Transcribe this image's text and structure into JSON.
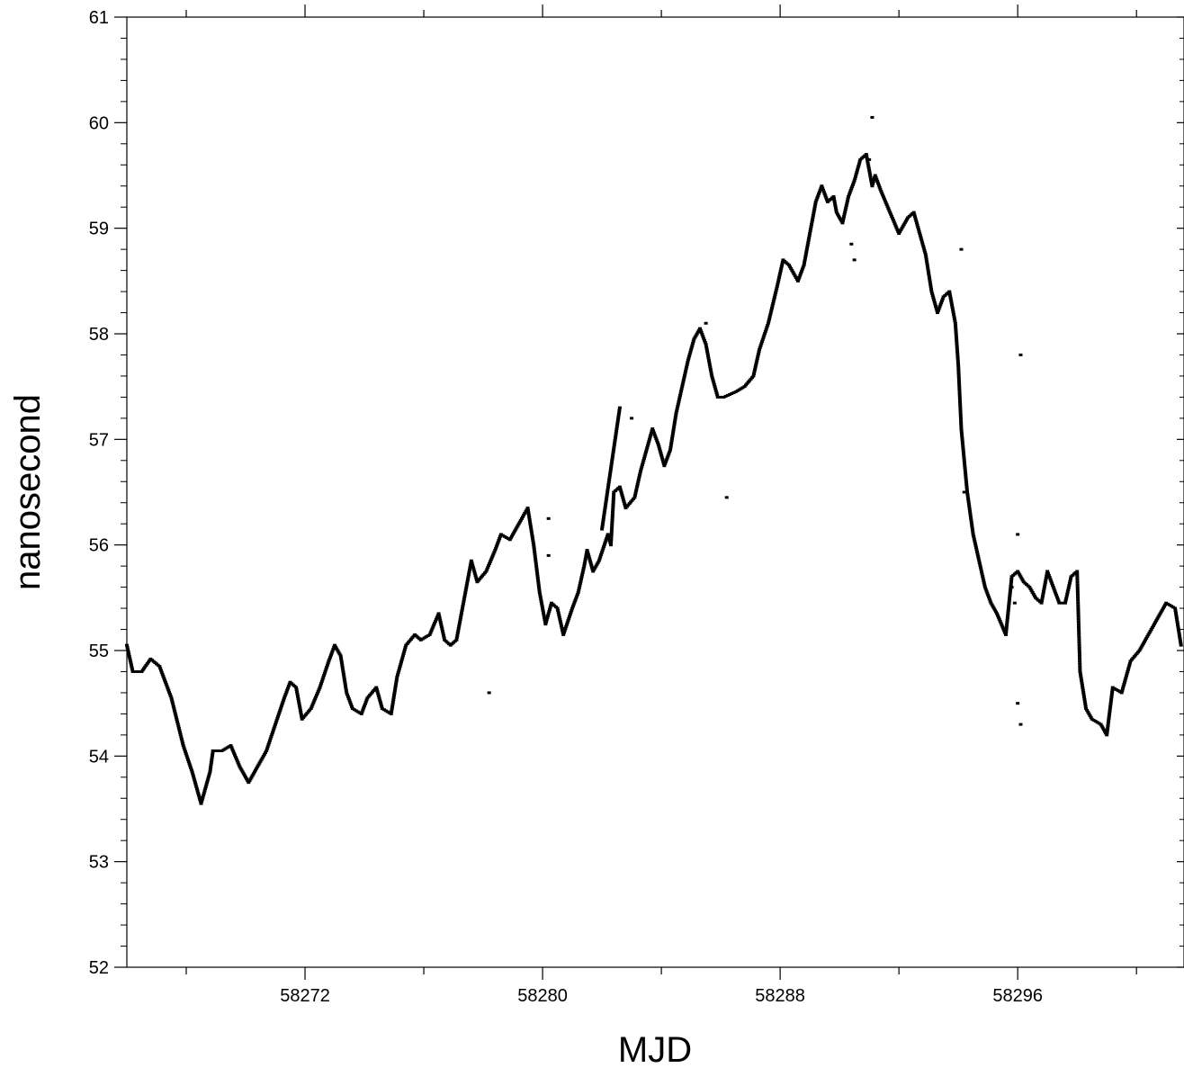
{
  "chart_data": {
    "type": "scatter",
    "title": "",
    "xlabel": "MJD",
    "ylabel": "nanosecond",
    "xlim": [
      58266.0,
      58301.6
    ],
    "ylim": [
      52,
      61
    ],
    "x_ticks": [
      58272,
      58280,
      58288,
      58296
    ],
    "y_ticks": [
      52,
      53,
      54,
      55,
      56,
      57,
      58,
      59,
      60,
      61
    ],
    "grid": false,
    "legend": "none",
    "marker_color": "#000000",
    "series": [
      {
        "points": [
          [
            58266.0,
            55.05
          ],
          [
            58266.2,
            54.8
          ],
          [
            58266.5,
            54.8
          ],
          [
            58266.8,
            54.92
          ],
          [
            58267.1,
            54.85
          ],
          [
            58267.5,
            54.55
          ],
          [
            58267.9,
            54.1
          ],
          [
            58268.2,
            53.85
          ],
          [
            58268.5,
            53.55
          ],
          [
            58268.8,
            53.85
          ],
          [
            58268.9,
            54.05
          ],
          [
            58269.2,
            54.05
          ],
          [
            58269.5,
            54.1
          ],
          [
            58269.8,
            53.9
          ],
          [
            58270.1,
            53.75
          ],
          [
            58270.4,
            53.9
          ],
          [
            58270.7,
            54.05
          ],
          [
            58271.0,
            54.3
          ],
          [
            58271.3,
            54.55
          ],
          [
            58271.5,
            54.7
          ],
          [
            58271.7,
            54.65
          ],
          [
            58271.9,
            54.35
          ],
          [
            58272.2,
            54.45
          ],
          [
            58272.5,
            54.65
          ],
          [
            58272.8,
            54.9
          ],
          [
            58273.0,
            55.05
          ],
          [
            58273.2,
            54.95
          ],
          [
            58273.4,
            54.6
          ],
          [
            58273.6,
            54.45
          ],
          [
            58273.9,
            54.4
          ],
          [
            58274.1,
            54.55
          ],
          [
            58274.4,
            54.65
          ],
          [
            58274.6,
            54.45
          ],
          [
            58274.9,
            54.4
          ],
          [
            58275.1,
            54.75
          ],
          [
            58275.4,
            55.05
          ],
          [
            58275.7,
            55.15
          ],
          [
            58275.9,
            55.1
          ],
          [
            58276.2,
            55.15
          ],
          [
            58276.5,
            55.35
          ],
          [
            58276.7,
            55.1
          ],
          [
            58276.9,
            55.05
          ],
          [
            58277.1,
            55.1
          ],
          [
            58277.4,
            55.55
          ],
          [
            58277.6,
            55.85
          ],
          [
            58277.8,
            55.65
          ],
          [
            58278.1,
            55.75
          ],
          [
            58278.4,
            55.95
          ],
          [
            58278.6,
            56.1
          ],
          [
            58278.9,
            56.05
          ],
          [
            58279.2,
            56.2
          ],
          [
            58279.5,
            56.35
          ],
          [
            58279.7,
            56.0
          ],
          [
            58279.9,
            55.55
          ],
          [
            58280.1,
            55.25
          ],
          [
            58280.3,
            55.45
          ],
          [
            58280.5,
            55.4
          ],
          [
            58280.7,
            55.15
          ],
          [
            58281.0,
            55.4
          ],
          [
            58281.2,
            55.55
          ],
          [
            58281.4,
            55.8
          ],
          [
            58281.5,
            55.95
          ],
          [
            58281.7,
            55.75
          ],
          [
            58281.9,
            55.85
          ],
          [
            58282.2,
            56.1
          ],
          [
            58282.3,
            56.0
          ],
          [
            58282.4,
            56.5
          ],
          [
            58282.6,
            56.55
          ],
          [
            58282.8,
            56.35
          ],
          [
            58283.1,
            56.45
          ],
          [
            58283.3,
            56.7
          ],
          [
            58283.5,
            56.9
          ],
          [
            58283.7,
            57.1
          ],
          [
            58283.9,
            56.95
          ],
          [
            58284.1,
            56.75
          ],
          [
            58284.3,
            56.9
          ],
          [
            58284.5,
            57.25
          ],
          [
            58284.7,
            57.5
          ],
          [
            58284.9,
            57.75
          ],
          [
            58285.1,
            57.95
          ],
          [
            58285.3,
            58.05
          ],
          [
            58285.5,
            57.9
          ],
          [
            58285.7,
            57.6
          ],
          [
            58285.9,
            57.4
          ],
          [
            58286.1,
            57.4
          ],
          [
            58286.5,
            57.45
          ],
          [
            58286.8,
            57.5
          ],
          [
            58287.1,
            57.6
          ],
          [
            58287.3,
            57.85
          ],
          [
            58287.6,
            58.1
          ],
          [
            58287.9,
            58.45
          ],
          [
            58288.1,
            58.7
          ],
          [
            58288.3,
            58.65
          ],
          [
            58288.6,
            58.5
          ],
          [
            58288.8,
            58.65
          ],
          [
            58289.0,
            58.95
          ],
          [
            58289.2,
            59.25
          ],
          [
            58289.4,
            59.4
          ],
          [
            58289.6,
            59.25
          ],
          [
            58289.8,
            59.3
          ],
          [
            58289.9,
            59.15
          ],
          [
            58290.1,
            59.05
          ],
          [
            58290.3,
            59.3
          ],
          [
            58290.5,
            59.45
          ],
          [
            58290.7,
            59.65
          ],
          [
            58290.9,
            59.7
          ],
          [
            58291.1,
            59.4
          ],
          [
            58291.2,
            59.5
          ],
          [
            58291.4,
            59.35
          ],
          [
            58292.0,
            58.95
          ],
          [
            58292.3,
            59.1
          ],
          [
            58292.5,
            59.15
          ],
          [
            58292.7,
            58.95
          ],
          [
            58292.9,
            58.75
          ],
          [
            58293.1,
            58.4
          ],
          [
            58293.3,
            58.2
          ],
          [
            58293.5,
            58.35
          ],
          [
            58293.7,
            58.4
          ],
          [
            58293.9,
            58.1
          ],
          [
            58294.0,
            57.7
          ],
          [
            58294.1,
            57.1
          ],
          [
            58294.3,
            56.5
          ],
          [
            58294.5,
            56.1
          ],
          [
            58294.7,
            55.85
          ],
          [
            58294.9,
            55.6
          ],
          [
            58295.1,
            55.45
          ],
          [
            58295.3,
            55.35
          ],
          [
            58295.6,
            55.15
          ],
          [
            58295.8,
            55.7
          ],
          [
            58296.0,
            55.75
          ],
          [
            58296.2,
            55.65
          ],
          [
            58296.4,
            55.6
          ],
          [
            58296.6,
            55.5
          ],
          [
            58296.8,
            55.45
          ],
          [
            58297.0,
            55.75
          ],
          [
            58297.2,
            55.6
          ],
          [
            58297.4,
            55.45
          ],
          [
            58297.6,
            55.45
          ],
          [
            58297.8,
            55.7
          ],
          [
            58298.0,
            55.75
          ],
          [
            58298.1,
            54.8
          ],
          [
            58298.3,
            54.45
          ],
          [
            58298.5,
            54.35
          ],
          [
            58298.8,
            54.3
          ],
          [
            58299.0,
            54.2
          ],
          [
            58299.2,
            54.65
          ],
          [
            58299.5,
            54.6
          ],
          [
            58299.8,
            54.9
          ],
          [
            58300.1,
            55.0
          ],
          [
            58300.4,
            55.15
          ],
          [
            58300.7,
            55.3
          ],
          [
            58300.9,
            55.4
          ],
          [
            58301.0,
            55.45
          ],
          [
            58301.3,
            55.4
          ],
          [
            58301.5,
            55.05
          ],
          [
            58278.2,
            54.6
          ],
          [
            58280.2,
            56.25
          ],
          [
            58280.2,
            55.9
          ],
          [
            58282.0,
            56.15
          ],
          [
            58282.6,
            57.3
          ],
          [
            58283.0,
            57.2
          ],
          [
            58285.5,
            58.1
          ],
          [
            58286.2,
            56.45
          ],
          [
            58290.5,
            58.7
          ],
          [
            58290.4,
            58.85
          ],
          [
            58291.1,
            60.05
          ],
          [
            58291.0,
            59.65
          ],
          [
            58294.1,
            58.8
          ],
          [
            58294.2,
            56.5
          ],
          [
            58295.8,
            55.6
          ],
          [
            58296.1,
            57.8
          ],
          [
            58296.0,
            56.1
          ],
          [
            58295.9,
            55.45
          ],
          [
            58296.0,
            54.5
          ],
          [
            58296.1,
            54.3
          ]
        ]
      }
    ]
  }
}
